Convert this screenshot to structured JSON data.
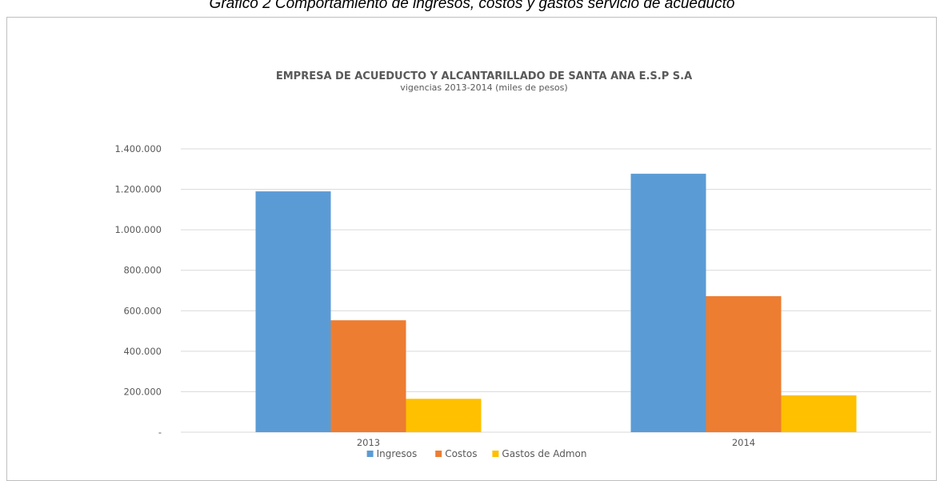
{
  "caption": "Gráfico 2 Comportamiento de ingresos, costos y gastos servicio de acueducto",
  "chart_data": {
    "type": "bar",
    "title": "EMPRESA DE ACUEDUCTO Y ALCANTARILLADO DE SANTA ANA E.S.P S.A",
    "subtitle": "vigencias 2013-2014 (miles de pesos)",
    "xlabel": "",
    "ylabel": "",
    "categories": [
      "2013",
      "2014"
    ],
    "series": [
      {
        "name": "Ingresos",
        "color": "#5b9bd5",
        "values": [
          1190000,
          1277000
        ]
      },
      {
        "name": "Costos",
        "color": "#ed7d31",
        "values": [
          553000,
          672000
        ]
      },
      {
        "name": "Gastos de Admon",
        "color": "#ffc000",
        "values": [
          165000,
          182000
        ]
      }
    ],
    "ylim": [
      0,
      1400000
    ],
    "yticks": [
      {
        "value": 0,
        "label": "-"
      },
      {
        "value": 200000,
        "label": "200.000"
      },
      {
        "value": 400000,
        "label": "400.000"
      },
      {
        "value": 600000,
        "label": "600.000"
      },
      {
        "value": 800000,
        "label": "800.000"
      },
      {
        "value": 1000000,
        "label": "1.000.000"
      },
      {
        "value": 1200000,
        "label": "1.200.000"
      },
      {
        "value": 1400000,
        "label": "1.400.000"
      }
    ],
    "grid": true,
    "legend_position": "bottom"
  }
}
